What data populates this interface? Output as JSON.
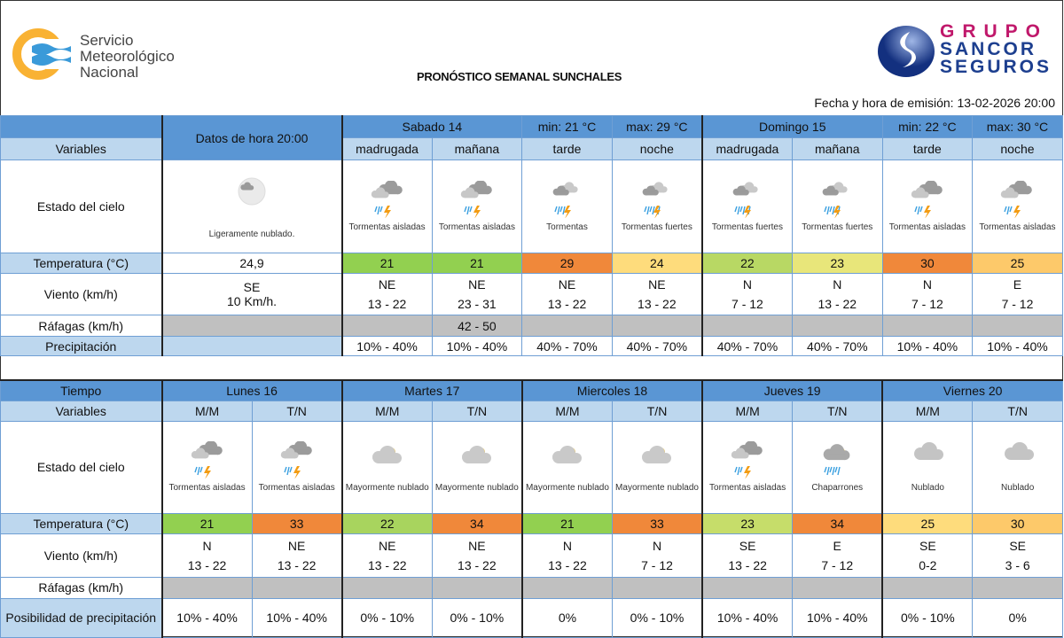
{
  "header": {
    "org_name": [
      "Servicio",
      "Meteorológico",
      "Nacional"
    ],
    "title": "PRONÓSTICO SEMANAL SUNCHALES",
    "sponsor": [
      "GRUPO",
      "SANCOR",
      "SEGUROS"
    ],
    "emission": "Fecha y hora de emisión: 13-02-2026 20:00"
  },
  "colors": {
    "header_blue": "#5a96d4",
    "light_blue": "#bdd7ee",
    "gust_gray": "#c0c0c0"
  },
  "labels": {
    "variables": "Variables",
    "tiempo": "Tiempo",
    "estado": "Estado del cielo",
    "temperatura": "Temperatura (°C)",
    "viento": "Viento (km/h)",
    "rafagas": "Ráfagas (km/h)",
    "precipitacion": "Precipitación",
    "posibilidad": "Posibilidad de precipitación"
  },
  "current": {
    "header": "Datos de hora 20:00",
    "icon": "partly-cloudy-night-icon",
    "sky": "Ligeramente nublado.",
    "temp": "24,9",
    "wind_dir": "SE",
    "wind_speed": "10 Km/h."
  },
  "short_term": {
    "days": [
      {
        "name": "Sabado 14",
        "min": "min: 21 °C",
        "max": "max: 29 °C"
      },
      {
        "name": "Domingo 15",
        "min": "min: 22 °C",
        "max": "max: 30 °C"
      }
    ],
    "periods": [
      {
        "label": "madrugada",
        "icon": "storm-icon",
        "sky": "Tormentas aisladas",
        "temp": "21",
        "color": "#92d050",
        "dir": "NE",
        "speed": "13 - 22",
        "gust": "",
        "precip": "10% - 40%"
      },
      {
        "label": "mañana",
        "icon": "storm-icon",
        "sky": "Tormentas aisladas",
        "temp": "21",
        "color": "#92d050",
        "dir": "NE",
        "speed": "23 - 31",
        "gust": "42 - 50",
        "precip": "10% - 40%"
      },
      {
        "label": "tarde",
        "icon": "rain-storm-icon",
        "sky": "Tormentas",
        "temp": "29",
        "color": "#f0883a",
        "dir": "NE",
        "speed": "13 - 22",
        "gust": "",
        "precip": "40% - 70%"
      },
      {
        "label": "noche",
        "icon": "heavy-storm-icon",
        "sky": "Tormentas fuertes",
        "temp": "24",
        "color": "#fedc7c",
        "dir": "NE",
        "speed": "13 - 22",
        "gust": "",
        "precip": "40% - 70%"
      },
      {
        "label": "madrugada",
        "icon": "heavy-storm-icon",
        "sky": "Tormentas fuertes",
        "temp": "22",
        "color": "#b8d864",
        "dir": "N",
        "speed": "7 - 12",
        "gust": "",
        "precip": "40% - 70%"
      },
      {
        "label": "mañana",
        "icon": "heavy-storm-icon",
        "sky": "Tormentas fuertes",
        "temp": "23",
        "color": "#e8e67a",
        "dir": "N",
        "speed": "13 - 22",
        "gust": "",
        "precip": "40% - 70%"
      },
      {
        "label": "tarde",
        "icon": "storm-icon",
        "sky": "Tormentas aisladas",
        "temp": "30",
        "color": "#f0883a",
        "dir": "N",
        "speed": "7 - 12",
        "gust": "",
        "precip": "10% - 40%"
      },
      {
        "label": "noche",
        "icon": "storm-icon",
        "sky": "Tormentas aisladas",
        "temp": "25",
        "color": "#fdc96a",
        "dir": "E",
        "speed": "7 - 12",
        "gust": "",
        "precip": "10% - 40%"
      }
    ]
  },
  "extended": {
    "days": [
      "Lunes 16",
      "Martes 17",
      "Miercoles 18",
      "Jueves 19",
      "Viernes 20"
    ],
    "periods": [
      {
        "label": "M/M",
        "icon": "storm-icon",
        "sky": "Tormentas aisladas",
        "temp": "21",
        "color": "#92d050",
        "dir": "N",
        "speed": "13 - 22",
        "precip": "10% - 40%"
      },
      {
        "label": "T/N",
        "icon": "storm-icon",
        "sky": "Tormentas aisladas",
        "temp": "33",
        "color": "#f0883a",
        "dir": "NE",
        "speed": "13 - 22",
        "precip": "10% - 40%"
      },
      {
        "label": "M/M",
        "icon": "mostly-cloudy-icon",
        "sky": "Mayormente nublado",
        "temp": "22",
        "color": "#a8d45e",
        "dir": "NE",
        "speed": "13 - 22",
        "precip": "0% - 10%"
      },
      {
        "label": "T/N",
        "icon": "mostly-cloudy-icon",
        "sky": "Mayormente nublado",
        "temp": "34",
        "color": "#f0883a",
        "dir": "NE",
        "speed": "13 - 22",
        "precip": "0% - 10%"
      },
      {
        "label": "M/M",
        "icon": "mostly-cloudy-icon",
        "sky": "Mayormente nublado",
        "temp": "21",
        "color": "#92d050",
        "dir": "N",
        "speed": "13 - 22",
        "precip": "0%"
      },
      {
        "label": "T/N",
        "icon": "mostly-cloudy-icon",
        "sky": "Mayormente nublado",
        "temp": "33",
        "color": "#f0883a",
        "dir": "N",
        "speed": "7 - 12",
        "precip": "0% - 10%"
      },
      {
        "label": "M/M",
        "icon": "storm-icon",
        "sky": "Tormentas aisladas",
        "temp": "23",
        "color": "#c6dd6a",
        "dir": "SE",
        "speed": "13 - 22",
        "precip": "10% - 40%"
      },
      {
        "label": "T/N",
        "icon": "showers-icon",
        "sky": "Chaparrones",
        "temp": "34",
        "color": "#f0883a",
        "dir": "E",
        "speed": "7 - 12",
        "precip": "10% - 40%"
      },
      {
        "label": "M/M",
        "icon": "cloudy-icon",
        "sky": "Nublado",
        "temp": "25",
        "color": "#fedc7c",
        "dir": "SE",
        "speed": "0-2",
        "precip": "0% - 10%"
      },
      {
        "label": "T/N",
        "icon": "cloudy-icon",
        "sky": "Nublado",
        "temp": "30",
        "color": "#fdc96a",
        "dir": "SE",
        "speed": "3 - 6",
        "precip": "0%"
      }
    ]
  }
}
